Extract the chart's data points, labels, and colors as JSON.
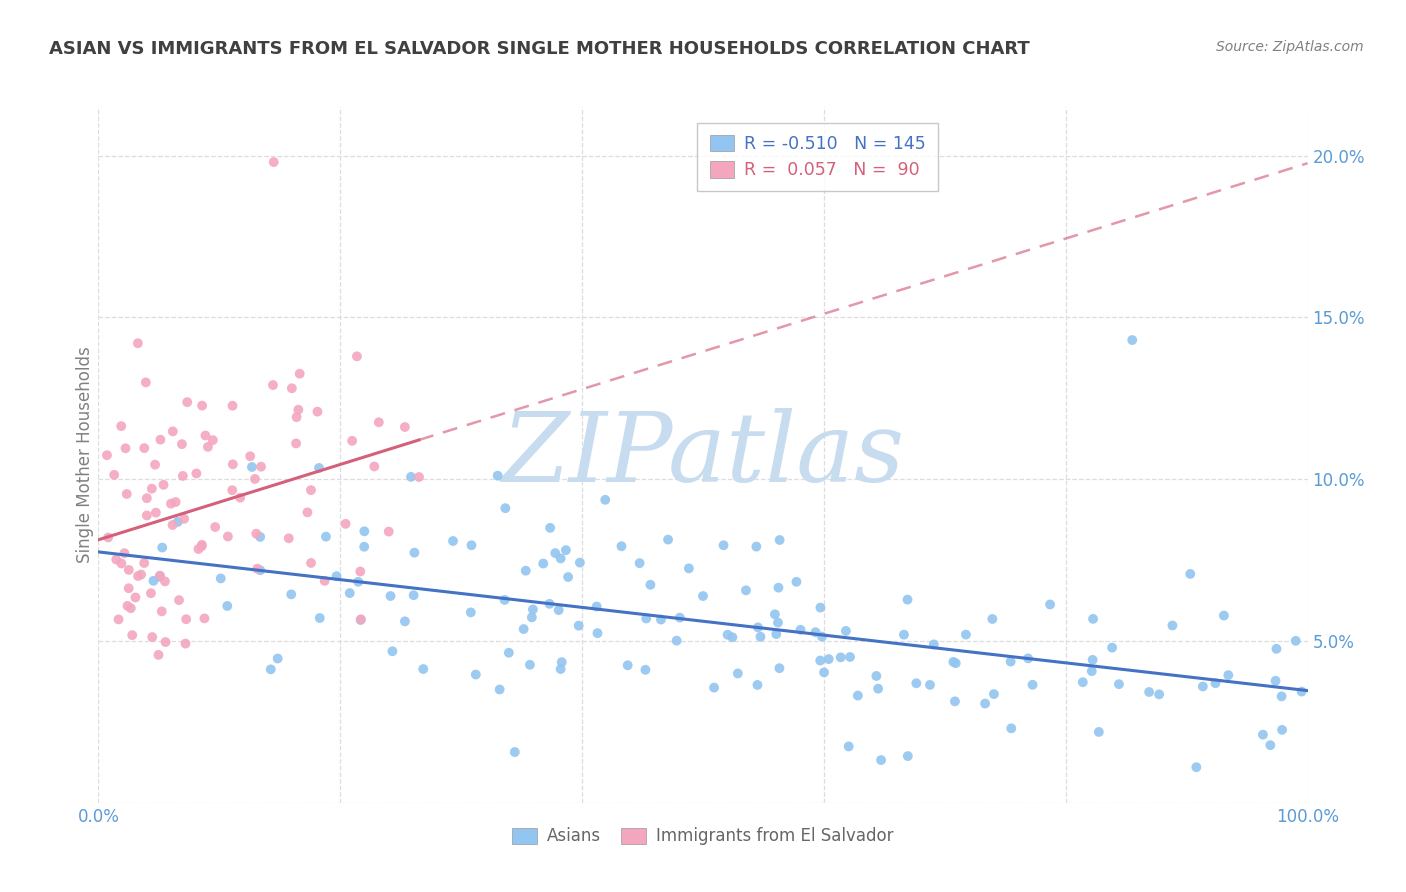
{
  "title": "ASIAN VS IMMIGRANTS FROM EL SALVADOR SINGLE MOTHER HOUSEHOLDS CORRELATION CHART",
  "source": "Source: ZipAtlas.com",
  "ylabel": "Single Mother Households",
  "xlim": [
    0.0,
    1.0
  ],
  "ylim": [
    0.0,
    0.215
  ],
  "yticks": [
    0.0,
    0.05,
    0.1,
    0.15,
    0.2
  ],
  "ytick_labels": [
    "",
    "5.0%",
    "10.0%",
    "15.0%",
    "20.0%"
  ],
  "xticks": [
    0.0,
    0.2,
    0.4,
    0.6,
    0.8,
    1.0
  ],
  "xtick_labels": [
    "0.0%",
    "",
    "",
    "",
    "",
    "100.0%"
  ],
  "asian_color": "#92C5F0",
  "salvador_color": "#F4A6BE",
  "asian_line_color": "#4472C4",
  "salvador_line_color": "#D4607A",
  "asian_R": -0.51,
  "asian_N": 145,
  "salvador_R": 0.057,
  "salvador_N": 90,
  "watermark": "ZIPatlas",
  "watermark_color": "#C8DCF0",
  "legend_label_asian": "Asians",
  "legend_label_salvador": "Immigrants from El Salvador",
  "background_color": "#FFFFFF",
  "grid_color": "#DDDDDD",
  "tick_color": "#5B9BD5",
  "title_color": "#404040",
  "ylabel_color": "#808080",
  "source_color": "#808080"
}
